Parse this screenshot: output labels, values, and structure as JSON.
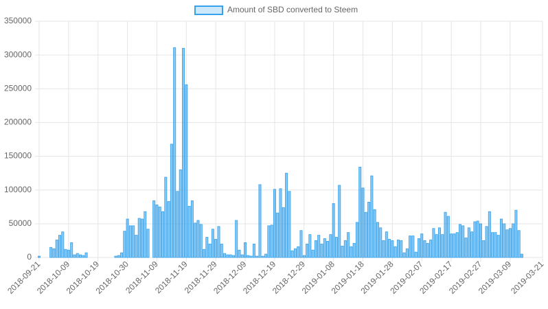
{
  "chart_data": {
    "type": "bar",
    "series": [
      {
        "name": "Amount of SBD converted to Steem",
        "color": "#36a2eb",
        "values": [
          2000,
          0,
          0,
          0,
          15000,
          13000,
          26000,
          33000,
          38000,
          12000,
          11000,
          22000,
          4000,
          6000,
          4000,
          3000,
          7000,
          0,
          0,
          0,
          0,
          0,
          0,
          0,
          0,
          0,
          2000,
          3000,
          7000,
          39000,
          57000,
          47000,
          47000,
          33000,
          58000,
          57000,
          68000,
          42000,
          0,
          84000,
          78000,
          75000,
          68000,
          119000,
          83000,
          168000,
          311000,
          98000,
          130000,
          310000,
          256000,
          76000,
          84000,
          51000,
          55000,
          49000,
          12000,
          30000,
          20000,
          42000,
          27000,
          46000,
          20000,
          6000,
          4000,
          4000,
          3000,
          55000,
          11000,
          4000,
          22000,
          3000,
          2000,
          20000,
          2000,
          108000,
          2000,
          5000,
          47000,
          48000,
          101000,
          66000,
          102000,
          74000,
          125000,
          98000,
          10000,
          13000,
          16000,
          40000,
          3000,
          20000,
          34000,
          11000,
          25000,
          33000,
          20000,
          28000,
          24000,
          34000,
          80000,
          30000,
          107000,
          17000,
          25000,
          37000,
          16000,
          21000,
          52000,
          134000,
          103000,
          67000,
          82000,
          121000,
          71000,
          52000,
          44000,
          25000,
          38000,
          27000,
          25000,
          16000,
          26000,
          25000,
          7000,
          13000,
          32000,
          32000,
          8000,
          28000,
          35000,
          25000,
          21000,
          26000,
          43000,
          34000,
          44000,
          34000,
          67000,
          61000,
          35000,
          35000,
          37000,
          49000,
          47000,
          29000,
          44000,
          38000,
          53000,
          54000,
          50000,
          25000,
          46000,
          68000,
          37000,
          37000,
          33000,
          57000,
          50000,
          41000,
          43000,
          50000,
          70000,
          40000,
          5000,
          0,
          0,
          0,
          0,
          0,
          0,
          0
        ]
      }
    ],
    "categories": [
      "2018-09-21",
      null,
      null,
      null,
      null,
      null,
      null,
      null,
      null,
      null,
      "2018-10-09",
      null,
      null,
      null,
      null,
      null,
      null,
      null,
      null,
      null,
      "2018-10-19",
      null,
      null,
      null,
      null,
      null,
      null,
      null,
      null,
      null,
      "2018-10-30",
      null,
      null,
      null,
      null,
      null,
      null,
      null,
      null,
      null,
      "2018-11-09",
      null,
      null,
      null,
      null,
      null,
      null,
      null,
      null,
      null,
      "2018-11-19",
      null,
      null,
      null,
      null,
      null,
      null,
      null,
      null,
      null,
      "2018-11-29",
      null,
      null,
      null,
      null,
      null,
      null,
      null,
      null,
      null,
      "2018-12-09",
      null,
      null,
      null,
      null,
      null,
      null,
      null,
      null,
      null,
      "2018-12-19",
      null,
      null,
      null,
      null,
      null,
      null,
      null,
      null,
      null,
      "2018-12-29",
      null,
      null,
      null,
      null,
      null,
      null,
      null,
      null,
      null,
      "2019-01-08",
      null,
      null,
      null,
      null,
      null,
      null,
      null,
      null,
      null,
      "2019-01-18",
      null,
      null,
      null,
      null,
      null,
      null,
      null,
      null,
      null,
      "2019-01-28",
      null,
      null,
      null,
      null,
      null,
      null,
      null,
      null,
      null,
      "2019-02-07",
      null,
      null,
      null,
      null,
      null,
      null,
      null,
      null,
      null,
      "2019-02-17",
      null,
      null,
      null,
      null,
      null,
      null,
      null,
      null,
      null,
      "2019-02-27",
      null,
      null,
      null,
      null,
      null,
      null,
      null,
      null,
      null,
      "2019-03-09",
      null,
      null,
      null,
      null,
      null,
      null,
      null,
      null,
      null,
      null,
      "2019-03-21"
    ],
    "ylim": [
      0,
      350000
    ],
    "yticks": [
      0,
      50000,
      100000,
      150000,
      200000,
      250000,
      300000,
      350000
    ],
    "grid": true,
    "legend": "top"
  }
}
